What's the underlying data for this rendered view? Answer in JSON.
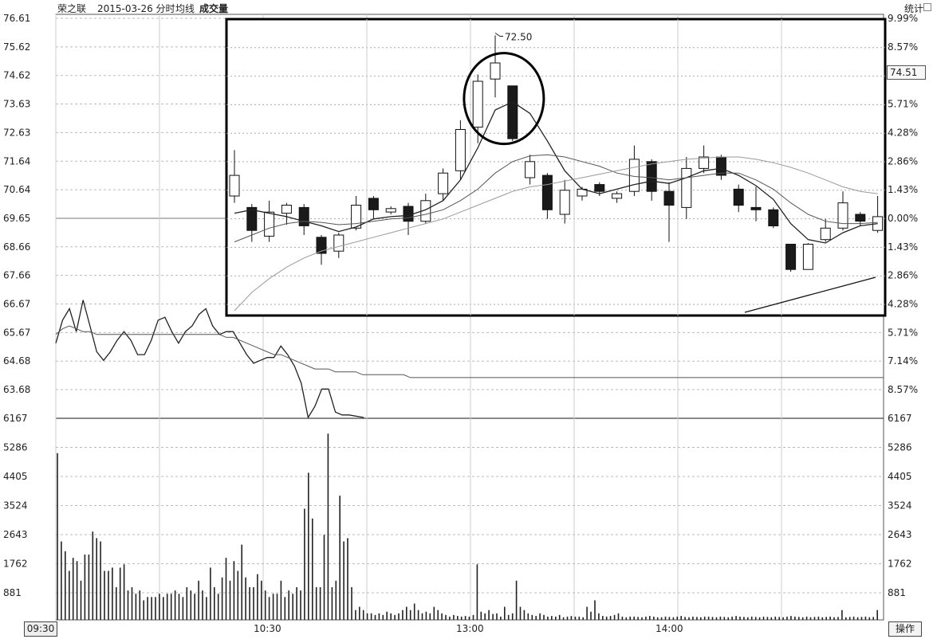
{
  "header": {
    "stock_name": "荣之联",
    "date_label": "2015-03-26 分时",
    "avg_label": "均线",
    "volume_label": "成交量",
    "stats_label": "统计"
  },
  "footer": {
    "time_start": "09:30",
    "time_ticks": [
      "10:30",
      "13:00",
      "14:00"
    ],
    "operate_label": "操作"
  },
  "current_price_label": "74.51",
  "chart_data": [
    {
      "type": "line",
      "panel": "intraday-price",
      "y_ticks_left": [
        "76.61",
        "75.62",
        "74.62",
        "73.63",
        "72.63",
        "71.64",
        "70.64",
        "69.65",
        "68.66",
        "67.66",
        "66.67",
        "65.67",
        "64.68",
        "63.68"
      ],
      "y_ticks_right": [
        "9.99%",
        "8.57%",
        "",
        "5.71%",
        "4.28%",
        "2.86%",
        "1.43%",
        "0.00%",
        "1.43%",
        "2.86%",
        "4.28%",
        "5.71%",
        "7.14%",
        "8.57%"
      ],
      "ylim": [
        63.68,
        76.61
      ],
      "x_ticks": [
        "09:30",
        "10:30",
        "13:00",
        "14:00"
      ],
      "series": [
        {
          "values": [
            65.3,
            66.1,
            66.5,
            65.7,
            66.8,
            65.9,
            65.0,
            64.7,
            65.0,
            65.4,
            65.7,
            65.4,
            64.9,
            64.9,
            65.4,
            66.1,
            66.2,
            65.7,
            65.3,
            65.7,
            65.9,
            66.3,
            66.5,
            65.9,
            65.6,
            65.7,
            65.7,
            65.3,
            64.9,
            64.6,
            64.7,
            64.8,
            64.8,
            65.2,
            64.9,
            64.5,
            63.9,
            62.7,
            63.1,
            63.7,
            63.7,
            62.9,
            62.8,
            62.8
          ]
        },
        {
          "values": [
            65.6,
            65.8,
            65.9,
            65.8,
            65.7,
            65.7,
            65.6,
            65.6,
            65.6,
            65.6,
            65.6,
            65.6,
            65.6,
            65.6,
            65.6,
            65.6,
            65.6,
            65.6,
            65.6,
            65.6,
            65.6,
            65.6,
            65.6,
            65.6,
            65.6,
            65.5,
            65.5,
            65.4,
            65.3,
            65.2,
            65.1,
            65.0,
            64.9,
            64.9,
            64.8,
            64.7,
            64.6,
            64.5,
            64.4,
            64.4,
            64.4,
            64.3,
            64.3,
            64.3,
            64.3,
            64.2,
            64.2,
            64.2,
            64.2,
            64.2,
            64.2,
            64.2,
            64.1,
            64.1,
            64.1,
            64.1,
            64.1,
            64.1,
            64.1,
            64.1
          ]
        }
      ]
    },
    {
      "type": "bar",
      "panel": "volume",
      "y_ticks": [
        "6167",
        "5286",
        "4405",
        "3524",
        "2643",
        "1762",
        "881"
      ],
      "ylim": [
        0,
        6167
      ],
      "values": [
        5100,
        2400,
        2100,
        1500,
        1900,
        1800,
        1200,
        2000,
        2000,
        2700,
        2500,
        2400,
        1500,
        1500,
        1600,
        1000,
        1600,
        1700,
        900,
        1000,
        800,
        900,
        600,
        700,
        700,
        700,
        800,
        700,
        800,
        800,
        900,
        800,
        700,
        1000,
        900,
        800,
        1200,
        900,
        700,
        1600,
        1000,
        800,
        1300,
        1900,
        1200,
        1800,
        1500,
        2300,
        1300,
        1000,
        1000,
        1400,
        1200,
        900,
        700,
        800,
        800,
        1200,
        700,
        900,
        800,
        1000,
        900,
        3400,
        4500,
        3100,
        1000,
        1000,
        2600,
        5700,
        1000,
        1200,
        3800,
        2400,
        2500,
        1000,
        300,
        400,
        300,
        200,
        200,
        150,
        200,
        150,
        250,
        200,
        150,
        200,
        300,
        400,
        300,
        500,
        300,
        200,
        250,
        200,
        400,
        300,
        200,
        150,
        100,
        150,
        120,
        100,
        120,
        100,
        150,
        1700,
        250,
        200,
        300,
        180,
        200,
        100,
        400,
        150,
        200,
        1200,
        400,
        300,
        200,
        150,
        120,
        200,
        150,
        100,
        120,
        100,
        150,
        80,
        100,
        120,
        100,
        100,
        80,
        400,
        250,
        600,
        200,
        120,
        100,
        120,
        150,
        200,
        100,
        80,
        100,
        100,
        90,
        80,
        100,
        120,
        100,
        80,
        80,
        100,
        90,
        80,
        100,
        120,
        90,
        80,
        100,
        90,
        80,
        100,
        100,
        90,
        80,
        100,
        90,
        80,
        100,
        120,
        100,
        90,
        80,
        100,
        90,
        80,
        100,
        90,
        80,
        100,
        90,
        80,
        100,
        120,
        100,
        90,
        80,
        100,
        80,
        90,
        100,
        80,
        90,
        100,
        80,
        90,
        300,
        80,
        90,
        100,
        80,
        90,
        100,
        80,
        90,
        300,
        80
      ]
    },
    {
      "type": "candlestick",
      "panel": "inset-daily-kline",
      "annotation": "72.50",
      "candles": [
        {
          "o": 73.0,
          "c": 74.8,
          "h": 77.0,
          "l": 72.4
        },
        {
          "o": 72.0,
          "c": 70.0,
          "h": 72.3,
          "l": 69.0
        },
        {
          "o": 69.5,
          "c": 71.6,
          "h": 72.6,
          "l": 69.0
        },
        {
          "o": 71.5,
          "c": 72.2,
          "h": 72.4,
          "l": 70.5
        },
        {
          "o": 72.0,
          "c": 70.4,
          "h": 72.3,
          "l": 69.6
        },
        {
          "o": 69.4,
          "c": 68.0,
          "h": 69.6,
          "l": 67.0
        },
        {
          "o": 68.2,
          "c": 69.6,
          "h": 69.8,
          "l": 67.6
        },
        {
          "o": 70.2,
          "c": 72.2,
          "h": 73.0,
          "l": 70.0
        },
        {
          "o": 72.8,
          "c": 71.8,
          "h": 73.0,
          "l": 71.0
        },
        {
          "o": 71.6,
          "c": 71.9,
          "h": 72.1,
          "l": 71.4
        },
        {
          "o": 72.1,
          "c": 70.8,
          "h": 72.4,
          "l": 69.6
        },
        {
          "o": 70.8,
          "c": 72.6,
          "h": 73.2,
          "l": 70.6
        },
        {
          "o": 73.2,
          "c": 75.0,
          "h": 75.4,
          "l": 72.6
        },
        {
          "o": 75.2,
          "c": 78.8,
          "h": 79.6,
          "l": 74.4
        },
        {
          "o": 79.0,
          "c": 83.0,
          "h": 83.6,
          "l": 77.6
        },
        {
          "o": 83.2,
          "c": 84.6,
          "h": 87.0,
          "l": 81.6
        },
        {
          "o": 82.6,
          "c": 78.0,
          "h": 82.6,
          "l": 77.8
        },
        {
          "o": 74.6,
          "c": 76.0,
          "h": 76.6,
          "l": 74.0
        },
        {
          "o": 74.8,
          "c": 71.8,
          "h": 75.0,
          "l": 71.0
        },
        {
          "o": 71.4,
          "c": 73.5,
          "h": 74.4,
          "l": 70.6
        },
        {
          "o": 73.0,
          "c": 73.6,
          "h": 73.8,
          "l": 72.6
        },
        {
          "o": 74.0,
          "c": 73.4,
          "h": 74.2,
          "l": 73.0
        },
        {
          "o": 72.8,
          "c": 73.2,
          "h": 73.4,
          "l": 72.4
        },
        {
          "o": 73.4,
          "c": 76.2,
          "h": 77.4,
          "l": 73.0
        },
        {
          "o": 76.0,
          "c": 73.4,
          "h": 76.2,
          "l": 72.6
        },
        {
          "o": 73.4,
          "c": 72.2,
          "h": 74.2,
          "l": 69.0
        },
        {
          "o": 72.0,
          "c": 75.4,
          "h": 76.4,
          "l": 71.0
        },
        {
          "o": 75.4,
          "c": 76.4,
          "h": 77.4,
          "l": 75.0
        },
        {
          "o": 76.4,
          "c": 74.8,
          "h": 76.6,
          "l": 74.4
        },
        {
          "o": 73.6,
          "c": 72.2,
          "h": 74.0,
          "l": 71.6
        },
        {
          "o": 72.0,
          "c": 71.8,
          "h": 73.8,
          "l": 70.8
        },
        {
          "o": 71.8,
          "c": 70.4,
          "h": 72.0,
          "l": 70.2
        },
        {
          "o": 68.8,
          "c": 66.6,
          "h": 68.8,
          "l": 66.4
        },
        {
          "o": 66.6,
          "c": 68.8,
          "h": 68.9,
          "l": 66.6
        },
        {
          "o": 69.2,
          "c": 70.2,
          "h": 71.0,
          "l": 69.0
        },
        {
          "o": 70.2,
          "c": 72.4,
          "h": 73.4,
          "l": 70.0
        },
        {
          "o": 71.4,
          "c": 70.8,
          "h": 71.6,
          "l": 70.4
        },
        {
          "o": 70.0,
          "c": 71.2,
          "h": 73.0,
          "l": 69.8
        }
      ],
      "ma_series": [
        {
          "values": [
            71.5,
            71.8,
            71.5,
            71.2,
            70.8,
            70.4,
            69.9,
            70.3,
            71.0,
            71.2,
            71.3,
            71.8,
            72.6,
            74.4,
            77.2,
            80.5,
            81.2,
            80.2,
            77.8,
            75.2,
            73.6,
            73.2,
            73.6,
            74.0,
            74.3,
            74.1,
            74.6,
            75.2,
            75.4,
            74.8,
            73.9,
            72.7,
            70.6,
            69.2,
            68.9,
            69.8,
            70.4,
            70.6
          ]
        },
        {
          "values": [
            69.0,
            69.6,
            70.2,
            70.6,
            70.8,
            70.7,
            70.5,
            70.6,
            70.8,
            71.0,
            71.1,
            71.4,
            71.8,
            72.6,
            73.6,
            75.0,
            76.0,
            76.5,
            76.6,
            76.4,
            76.0,
            75.6,
            75.0,
            74.7,
            74.6,
            74.4,
            74.6,
            74.8,
            75.0,
            75.0,
            74.4,
            73.6,
            72.4,
            71.4,
            70.8,
            70.6,
            70.6,
            70.7
          ]
        },
        {
          "values": [
            63.0,
            64.6,
            65.8,
            66.8,
            67.6,
            68.2,
            68.6,
            69.0,
            69.4,
            69.8,
            70.2,
            70.6,
            71.0,
            71.6,
            72.2,
            72.8,
            73.4,
            73.8,
            74.0,
            74.3,
            74.6,
            74.9,
            75.2,
            75.5,
            75.8,
            76.0,
            76.2,
            76.3,
            76.4,
            76.4,
            76.2,
            75.9,
            75.5,
            75.0,
            74.4,
            73.8,
            73.4,
            73.2
          ]
        }
      ]
    }
  ]
}
